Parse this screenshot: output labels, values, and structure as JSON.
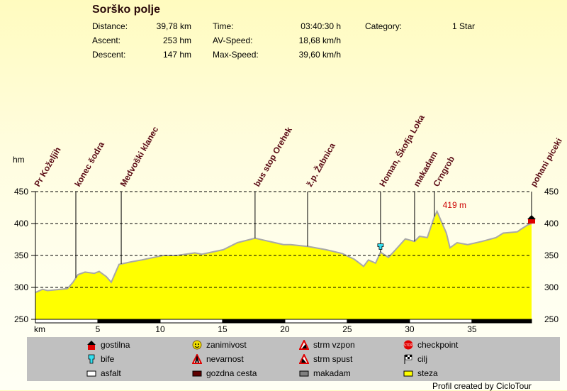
{
  "header": {
    "title": "Sorško polje",
    "stats": [
      {
        "label": "Distance:",
        "value": "39,78 km"
      },
      {
        "label": "Ascent:",
        "value": "253 hm"
      },
      {
        "label": "Descent:",
        "value": "147 hm"
      },
      {
        "label": "Time:",
        "value": "03:40:30 h"
      },
      {
        "label": "AV-Speed:",
        "value": "18,68 km/h"
      },
      {
        "label": "Max-Speed:",
        "value": "39,60 km/h"
      },
      {
        "label": "Category:",
        "value": "1 Star"
      }
    ]
  },
  "chart_data": {
    "type": "area",
    "ylabel": "hm",
    "xlabel": "km",
    "xlim": [
      0,
      39.78
    ],
    "ylim": [
      250,
      450
    ],
    "yticks": [
      250,
      300,
      350,
      400,
      450
    ],
    "xticks": [
      5,
      10,
      15,
      20,
      25,
      30,
      35
    ],
    "grid": "horizontal dashed",
    "fill_color": "#ffff00",
    "line_color": "#a8a8a8",
    "max_annotation": {
      "km": 32.2,
      "elev": 419,
      "label": "419 m",
      "color": "#cc0000"
    },
    "profile": [
      [
        0,
        292
      ],
      [
        0.57,
        297
      ],
      [
        0.97,
        295
      ],
      [
        1.99,
        297
      ],
      [
        2.56,
        298
      ],
      [
        3.01,
        308
      ],
      [
        3.41,
        320
      ],
      [
        3.98,
        324
      ],
      [
        4.72,
        322
      ],
      [
        5.11,
        325
      ],
      [
        5.68,
        317
      ],
      [
        6.08,
        308
      ],
      [
        6.7,
        336
      ],
      [
        7.67,
        340
      ],
      [
        8.52,
        343
      ],
      [
        10.23,
        350
      ],
      [
        11.36,
        350
      ],
      [
        12.78,
        354
      ],
      [
        13.35,
        352
      ],
      [
        15.06,
        359
      ],
      [
        16.19,
        370
      ],
      [
        17.61,
        377
      ],
      [
        18.75,
        372
      ],
      [
        19.89,
        367
      ],
      [
        20.45,
        367
      ],
      [
        21.88,
        364
      ],
      [
        23.3,
        359
      ],
      [
        24.6,
        353
      ],
      [
        25.57,
        344
      ],
      [
        26.31,
        333
      ],
      [
        26.7,
        343
      ],
      [
        27.27,
        338
      ],
      [
        27.67,
        355
      ],
      [
        28.3,
        347
      ],
      [
        28.69,
        355
      ],
      [
        29.66,
        376
      ],
      [
        30.4,
        372
      ],
      [
        30.8,
        380
      ],
      [
        31.42,
        378
      ],
      [
        31.99,
        411
      ],
      [
        32.2,
        419
      ],
      [
        32.95,
        385
      ],
      [
        33.24,
        362
      ],
      [
        33.81,
        370
      ],
      [
        34.66,
        367
      ],
      [
        35.8,
        372
      ],
      [
        36.93,
        378
      ],
      [
        37.5,
        385
      ],
      [
        38.64,
        387
      ],
      [
        38.92,
        391
      ],
      [
        39.49,
        398
      ],
      [
        39.78,
        400
      ]
    ],
    "waypoints": [
      {
        "km": 0,
        "label": "Pr Koželjih"
      },
      {
        "km": 3.24,
        "label": "konec šodra"
      },
      {
        "km": 6.88,
        "label": "Medvoški klanec"
      },
      {
        "km": 17.61,
        "label": "bus stop Orehek"
      },
      {
        "km": 21.82,
        "label": "ž.p. Žabnica"
      },
      {
        "km": 27.67,
        "label": "Homan, Škofja Loka",
        "icon": "bife"
      },
      {
        "km": 30.4,
        "label": "makadam"
      },
      {
        "km": 31.99,
        "label": "Crngrob"
      },
      {
        "km": 39.78,
        "label": "pohani piceki",
        "icon": "gostilna"
      }
    ]
  },
  "legend": [
    {
      "icon": "gostilna",
      "label": "gostilna"
    },
    {
      "icon": "zanimivost",
      "label": "zanimivost"
    },
    {
      "icon": "strm-vzpon",
      "label": "strm vzpon"
    },
    {
      "icon": "checkpoint",
      "label": "checkpoint"
    },
    {
      "icon": "bife",
      "label": "bife"
    },
    {
      "icon": "nevarnost",
      "label": "nevarnost"
    },
    {
      "icon": "strm-spust",
      "label": "strm spust"
    },
    {
      "icon": "cilj",
      "label": "cilj"
    },
    {
      "icon": "asfalt",
      "label": "asfalt"
    },
    {
      "icon": "gozdna-cesta",
      "label": "gozdna cesta"
    },
    {
      "icon": "makadam",
      "label": "makadam"
    },
    {
      "icon": "steza",
      "label": "steza"
    }
  ],
  "footer": {
    "credit": "Profil created by CicloTour"
  }
}
